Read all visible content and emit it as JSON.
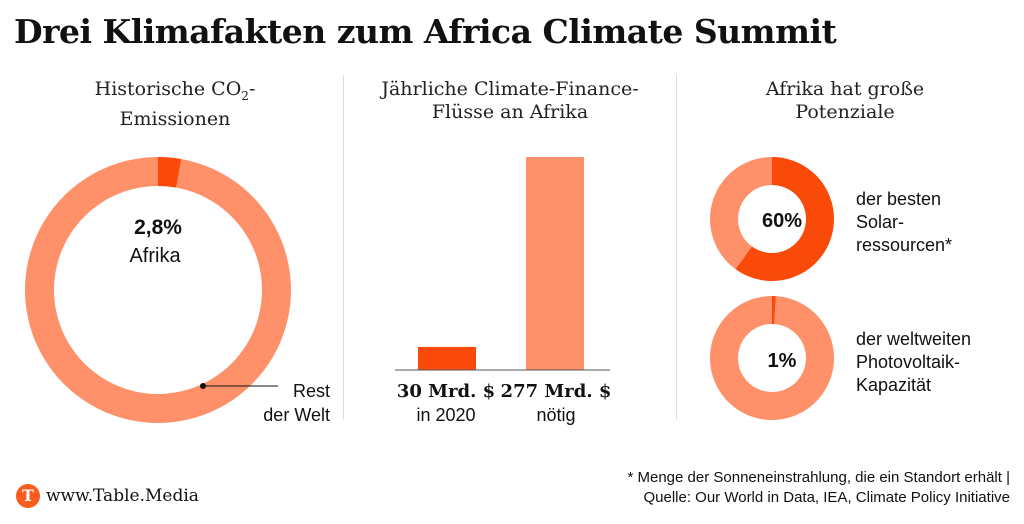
{
  "title": "Drei Klimafakten zum Africa Climate Summit",
  "colors": {
    "primary": "#fa4a0a",
    "light": "#fe906a"
  },
  "sections": {
    "emissions": {
      "title_line1": "Historische CO",
      "title_sub": "2",
      "title_tail": "-",
      "title_line2": "Emissionen"
    },
    "finance": {
      "title_line1": "Jährliche Climate-Finance-",
      "title_line2": "Flüsse an Afrika"
    },
    "potential": {
      "title_line1": "Afrika hat große",
      "title_line2": "Potenziale"
    }
  },
  "chart_data": [
    {
      "type": "pie",
      "title": "Historische CO2-Emissionen",
      "slices": [
        {
          "label": "Afrika",
          "value": 2.8,
          "display": "2,8%"
        },
        {
          "label": "Rest der Welt",
          "value": 97.2,
          "label_line1": "Rest",
          "label_line2": "der Welt"
        }
      ]
    },
    {
      "type": "bar",
      "title": "Jährliche Climate-Finance-Flüsse an Afrika",
      "categories": [
        "in 2020",
        "nötig"
      ],
      "values": [
        30,
        277
      ],
      "value_labels": [
        "30 Mrd. $",
        "277 Mrd. $"
      ],
      "ylim": [
        0,
        277
      ]
    },
    {
      "type": "pie",
      "title": "Afrika hat große Potenziale",
      "value": 60,
      "display": "60%",
      "label_lines": [
        "der besten",
        "Solar-",
        "ressourcen*"
      ]
    },
    {
      "type": "pie",
      "title": "Afrika hat große Potenziale",
      "value": 1,
      "display": "1%",
      "label_lines": [
        "der weltweiten",
        "Photovoltaik-",
        "Kapazität"
      ]
    }
  ],
  "footnote": {
    "line1": "* Menge der Sonneneinstrahlung, die ein Standort erhält |",
    "line2": "Quelle: Our World in Data, IEA, Climate Policy Initiative"
  },
  "logo": {
    "letter": "T",
    "text": "www.Table.Media"
  }
}
